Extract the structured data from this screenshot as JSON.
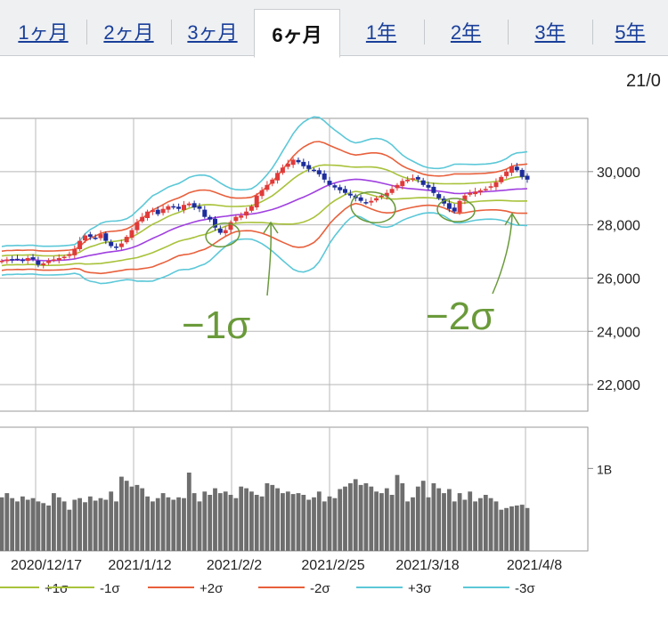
{
  "tabs": [
    {
      "label": "1ヶ月",
      "active": false
    },
    {
      "label": "2ヶ月",
      "active": false
    },
    {
      "label": "3ヶ月",
      "active": false
    },
    {
      "label": "6ヶ月",
      "active": true
    },
    {
      "label": "1年",
      "active": false
    },
    {
      "label": "2年",
      "active": false
    },
    {
      "label": "3年",
      "active": false
    },
    {
      "label": "5年",
      "active": false
    }
  ],
  "date_corner": "21/0",
  "annotations": {
    "minus1": "−1σ",
    "minus2": "−2σ"
  },
  "legend": [
    {
      "label": "+1σ",
      "color": "#a8c23a"
    },
    {
      "label": "-1σ",
      "color": "#a8c23a"
    },
    {
      "label": "+2σ",
      "color": "#e8603c"
    },
    {
      "label": "-2σ",
      "color": "#e8603c"
    },
    {
      "label": "+3σ",
      "color": "#5cc8d8"
    },
    {
      "label": "-3σ",
      "color": "#5cc8d8"
    }
  ],
  "chart_data": {
    "type": "candlestick",
    "price_axis": {
      "ticks": [
        "30,000",
        "28,000",
        "26,000",
        "24,000",
        "22,000"
      ],
      "tick_values": [
        30000,
        28000,
        26000,
        24000,
        22000
      ],
      "ylim": [
        21000,
        32000
      ]
    },
    "volume_axis": {
      "ticks": [
        "1B"
      ],
      "tick_values": [
        1000000000
      ],
      "ylim": [
        0,
        1500000000
      ]
    },
    "x_ticks": [
      "2020/12/17",
      "2021/1/12",
      "2021/2/2",
      "2021/2/25",
      "2021/3/18",
      "2021/4/8"
    ],
    "colors": {
      "up": "#e03a3a",
      "down": "#1c2c9c",
      "ma": "#a040e0",
      "sigma1": "#a8c23a",
      "sigma2": "#e8603c",
      "sigma3": "#5cc8d8",
      "volume": "#6e6e6e",
      "annotation": "#6a9a3a"
    },
    "close": [
      26650,
      26700,
      26680,
      26720,
      26650,
      26750,
      26700,
      26500,
      26550,
      26650,
      26700,
      26750,
      26800,
      26900,
      27100,
      27400,
      27600,
      27550,
      27500,
      27650,
      27400,
      27200,
      27150,
      27300,
      27550,
      27800,
      28100,
      28300,
      28500,
      28550,
      28400,
      28600,
      28700,
      28650,
      28600,
      28750,
      28800,
      28650,
      28600,
      28300,
      28200,
      27900,
      27700,
      27800,
      28100,
      28300,
      28350,
      28500,
      28700,
      29100,
      29300,
      29500,
      29700,
      29950,
      30150,
      30300,
      30450,
      30350,
      30200,
      30100,
      30050,
      29900,
      29700,
      29500,
      29400,
      29300,
      29200,
      29100,
      29000,
      28900,
      28850,
      28900,
      29000,
      29100,
      29200,
      29350,
      29500,
      29650,
      29700,
      29750,
      29700,
      29500,
      29400,
      29200,
      29000,
      28800,
      28600,
      28500,
      28900,
      29100,
      29200,
      29250,
      29300,
      29350,
      29450,
      29600,
      29800,
      30000,
      30200,
      30050,
      29800,
      29700
    ],
    "volume": [
      650,
      700,
      640,
      600,
      660,
      620,
      640,
      600,
      580,
      550,
      700,
      650,
      600,
      500,
      620,
      640,
      590,
      660,
      610,
      640,
      620,
      720,
      600,
      900,
      850,
      780,
      800,
      760,
      660,
      600,
      640,
      700,
      650,
      620,
      650,
      640,
      950,
      700,
      600,
      720,
      680,
      760,
      700,
      720,
      680,
      640,
      780,
      760,
      720,
      680,
      660,
      820,
      800,
      760,
      700,
      720,
      690,
      700,
      680,
      620,
      650,
      720,
      600,
      660,
      640,
      750,
      780,
      820,
      870,
      800,
      820,
      780,
      720,
      700,
      760,
      680,
      920,
      820,
      600,
      650,
      780,
      850,
      650,
      820,
      760,
      700,
      750,
      600,
      700,
      620,
      720,
      600,
      640,
      680,
      640,
      600,
      500,
      520,
      540,
      550,
      560,
      520
    ]
  }
}
